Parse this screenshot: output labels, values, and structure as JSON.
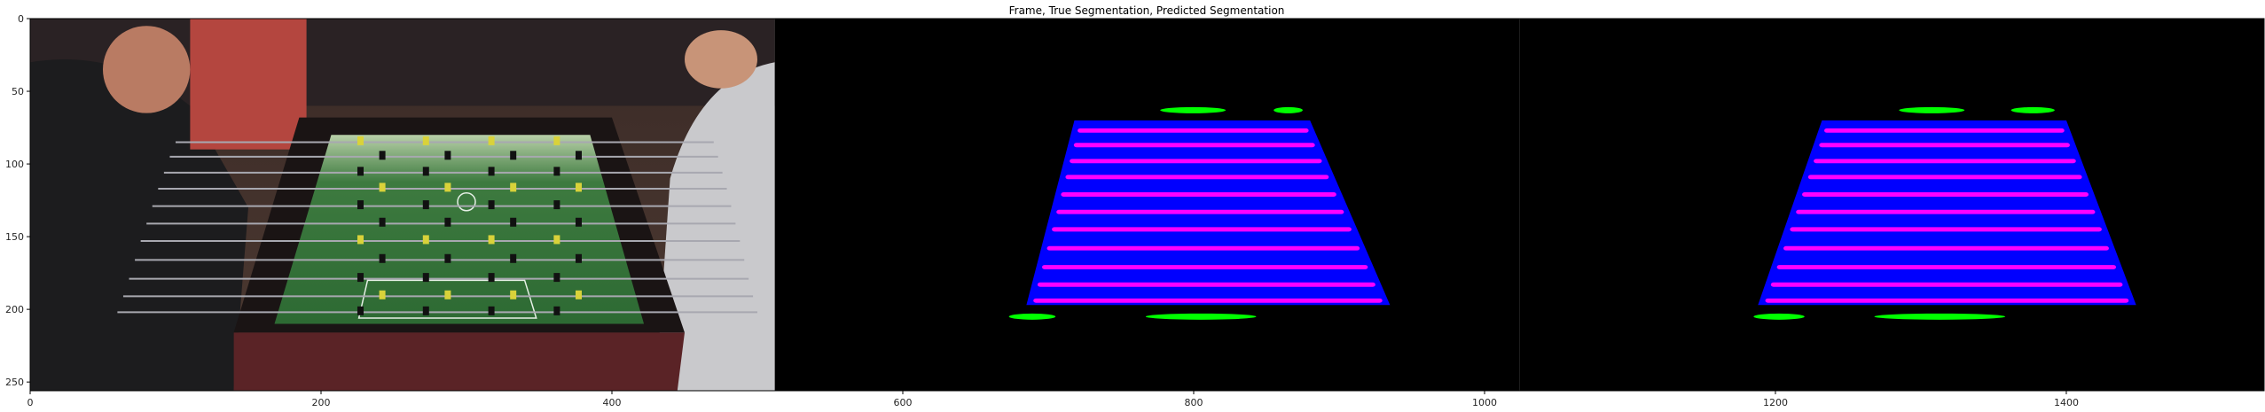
{
  "chart_data": {
    "type": "image",
    "title": "Frame, True Segmentation, Predicted Segmentation",
    "xlabel": "",
    "ylabel": "",
    "xlim": [
      0,
      1536
    ],
    "ylim": [
      256,
      0
    ],
    "xticks": [
      0,
      200,
      400,
      600,
      800,
      1000,
      1200,
      1400
    ],
    "yticks": [
      0,
      50,
      100,
      150,
      200,
      250
    ],
    "grid": false,
    "panels": [
      {
        "name": "Frame",
        "x_range": [
          0,
          512
        ]
      },
      {
        "name": "True Segmentation",
        "x_range": [
          512,
          1024
        ]
      },
      {
        "name": "Predicted Segmentation",
        "x_range": [
          1024,
          1536
        ]
      }
    ],
    "colors": {
      "background": "#000000",
      "table_region": "#0000ff",
      "rods": "#ff00ff",
      "side_objects": "#00ff00"
    },
    "true_segmentation": {
      "table_polygon": [
        [
          718,
          70
        ],
        [
          880,
          70
        ],
        [
          935,
          197
        ],
        [
          685,
          197
        ]
      ],
      "rod_y": [
        77,
        87,
        98,
        109,
        121,
        133,
        145,
        158,
        171,
        183,
        194
      ],
      "green_blobs": [
        [
          777,
          62,
          822,
          64
        ],
        [
          855,
          62,
          875,
          64
        ],
        [
          673,
          204,
          705,
          206
        ],
        [
          767,
          204,
          843,
          206
        ]
      ]
    },
    "predicted_segmentation": {
      "table_polygon": [
        [
          1232,
          70
        ],
        [
          1400,
          70
        ],
        [
          1448,
          197
        ],
        [
          1188,
          197
        ]
      ],
      "rod_y": [
        77,
        87,
        98,
        109,
        121,
        133,
        145,
        158,
        171,
        183,
        194
      ],
      "green_blobs": [
        [
          1285,
          62,
          1330,
          64
        ],
        [
          1362,
          62,
          1392,
          64
        ],
        [
          1185,
          204,
          1220,
          206
        ],
        [
          1268,
          204,
          1358,
          206
        ]
      ]
    }
  }
}
